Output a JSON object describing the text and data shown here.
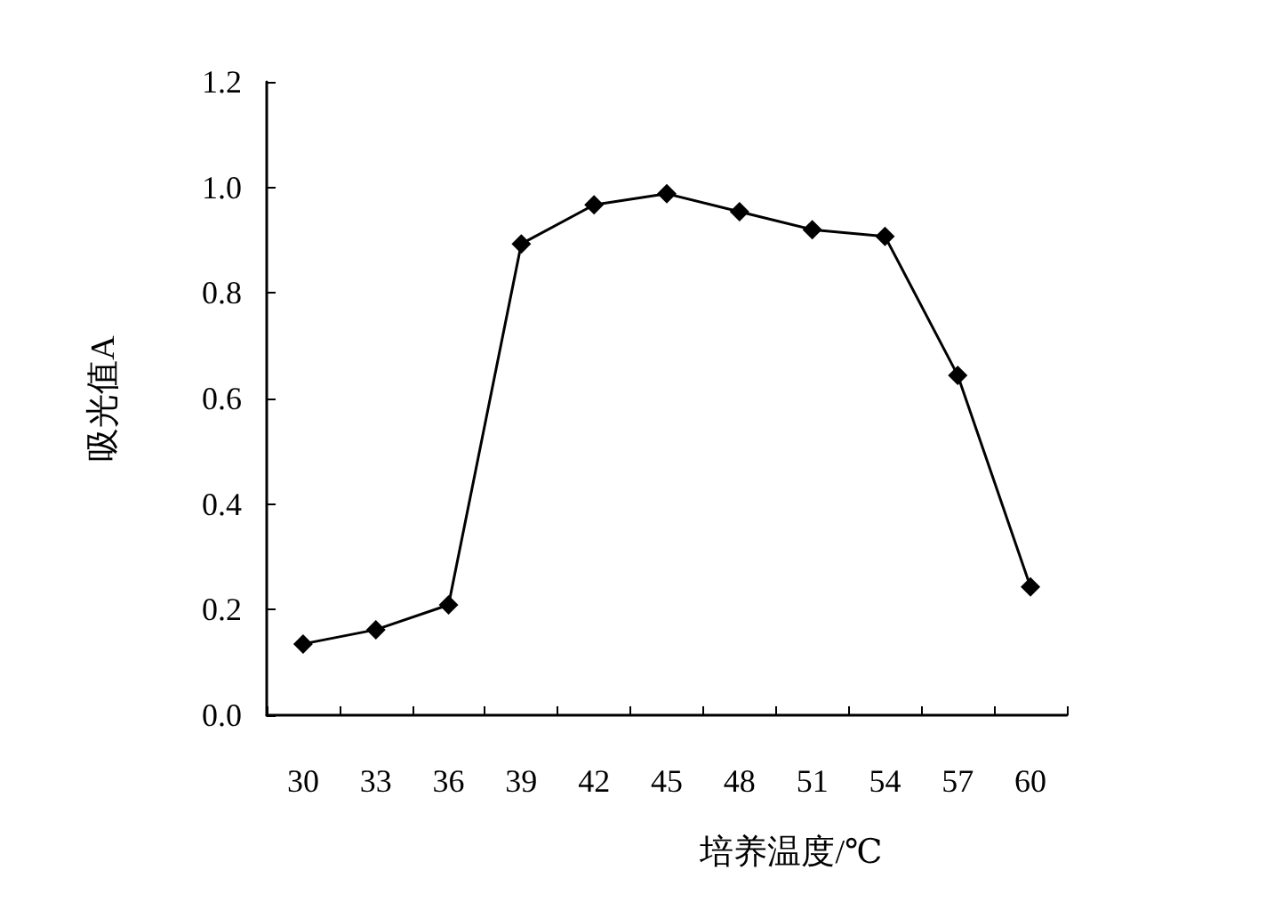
{
  "chart_data": {
    "type": "line",
    "xlabel": "培养温度/℃",
    "ylabel": "吸光值A",
    "categories": [
      "30",
      "33",
      "36",
      "39",
      "42",
      "45",
      "48",
      "51",
      "54",
      "57",
      "60"
    ],
    "series": [
      {
        "color": "#000000",
        "values": [
          0.135,
          0.162,
          0.209,
          0.893,
          0.967,
          0.988,
          0.954,
          0.92,
          0.907,
          0.644,
          0.243
        ]
      }
    ],
    "ylim": [
      0,
      1.2
    ],
    "yticks": [
      {
        "value": 0,
        "label": "0.0"
      },
      {
        "value": 0.2,
        "label": "0.2"
      },
      {
        "value": 0.4,
        "label": "0.4"
      },
      {
        "value": 0.6,
        "label": "0.6"
      },
      {
        "value": 0.8,
        "label": "0.8"
      },
      {
        "value": 1.0,
        "label": "1.0"
      },
      {
        "value": 1.2,
        "label": "1.2"
      }
    ],
    "grid": false,
    "marker": "diamond",
    "line_style": "solid"
  }
}
